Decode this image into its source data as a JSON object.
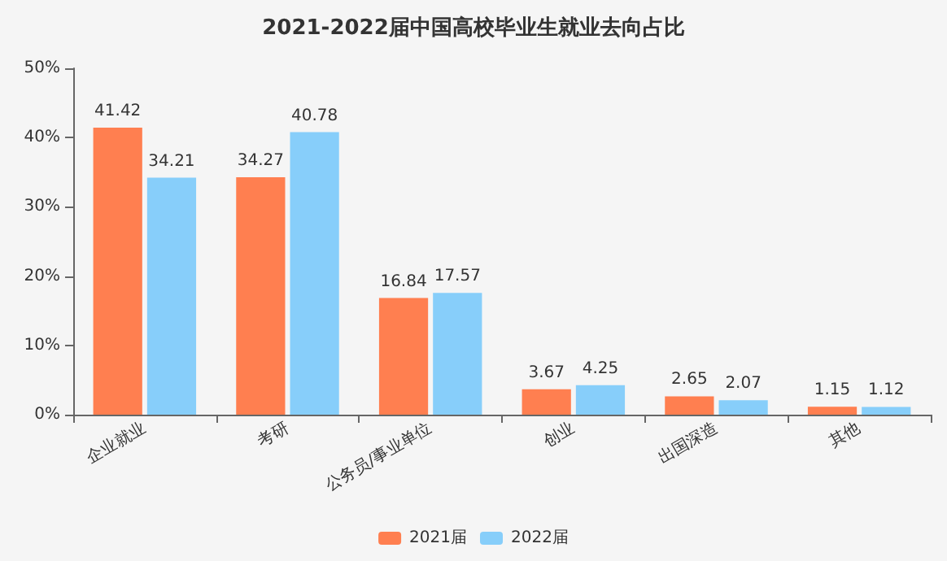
{
  "chart_data": {
    "type": "bar",
    "title": "2021-2022届中国高校毕业生就业去向占比",
    "categories": [
      "企业就业",
      "考研",
      "公务员/事业单位",
      "创业",
      "出国深造",
      "其他"
    ],
    "series": [
      {
        "name": "2021届",
        "color": "#ff7f50",
        "values": [
          41.42,
          34.27,
          16.84,
          3.67,
          2.65,
          1.15
        ]
      },
      {
        "name": "2022届",
        "color": "#87cefa",
        "values": [
          34.21,
          40.78,
          17.57,
          4.25,
          2.07,
          1.12
        ]
      }
    ],
    "ylim": [
      0,
      50
    ],
    "yticks": [
      {
        "value": 0,
        "label": "0%"
      },
      {
        "value": 10,
        "label": "10%"
      },
      {
        "value": 20,
        "label": "20%"
      },
      {
        "value": 30,
        "label": "30%"
      },
      {
        "value": 40,
        "label": "40%"
      },
      {
        "value": 50,
        "label": "50%"
      }
    ],
    "data_labels": true,
    "grid": false,
    "legend": "bottom"
  }
}
